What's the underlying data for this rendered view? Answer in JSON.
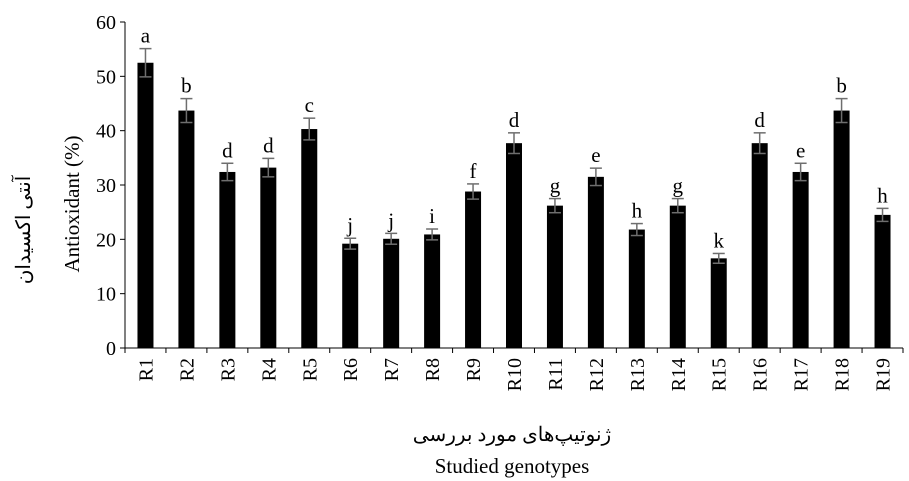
{
  "chart_data": {
    "type": "bar",
    "title": "",
    "xlabel_fa": "ژنوتیپ‌های مورد بررسی",
    "xlabel": "Studied genotypes",
    "ylabel": "Antioxidant (%)",
    "ylabel_fa": "آنتی اکسیدان",
    "ylim": [
      0,
      60
    ],
    "yticks": [
      0,
      10,
      20,
      30,
      40,
      50,
      60
    ],
    "grid": false,
    "legend": "none",
    "bar_color": "#000000",
    "error_bar_color": "#6e6e6e",
    "categories": [
      "R1",
      "R2",
      "R3",
      "R4",
      "R5",
      "R6",
      "R7",
      "R8",
      "R9",
      "R10",
      "R11",
      "R12",
      "R13",
      "R14",
      "R15",
      "R16",
      "R17",
      "R18",
      "R19"
    ],
    "series": [
      {
        "values": [
          52.5,
          43.7,
          32.4,
          33.2,
          40.3,
          19.2,
          20.1,
          20.9,
          28.8,
          37.7,
          26.2,
          31.5,
          21.8,
          26.2,
          16.5,
          37.7,
          32.4,
          43.7,
          24.5
        ],
        "errors": [
          2.6,
          2.2,
          1.6,
          1.7,
          2.0,
          1.0,
          1.0,
          1.0,
          1.4,
          1.9,
          1.3,
          1.6,
          1.1,
          1.3,
          0.9,
          1.9,
          1.6,
          2.2,
          1.2
        ],
        "labels": [
          "a",
          "b",
          "d",
          "d",
          "c",
          "j",
          "j",
          "i",
          "f",
          "d",
          "g",
          "e",
          "h",
          "g",
          "k",
          "d",
          "e",
          "b",
          "h"
        ]
      }
    ]
  }
}
